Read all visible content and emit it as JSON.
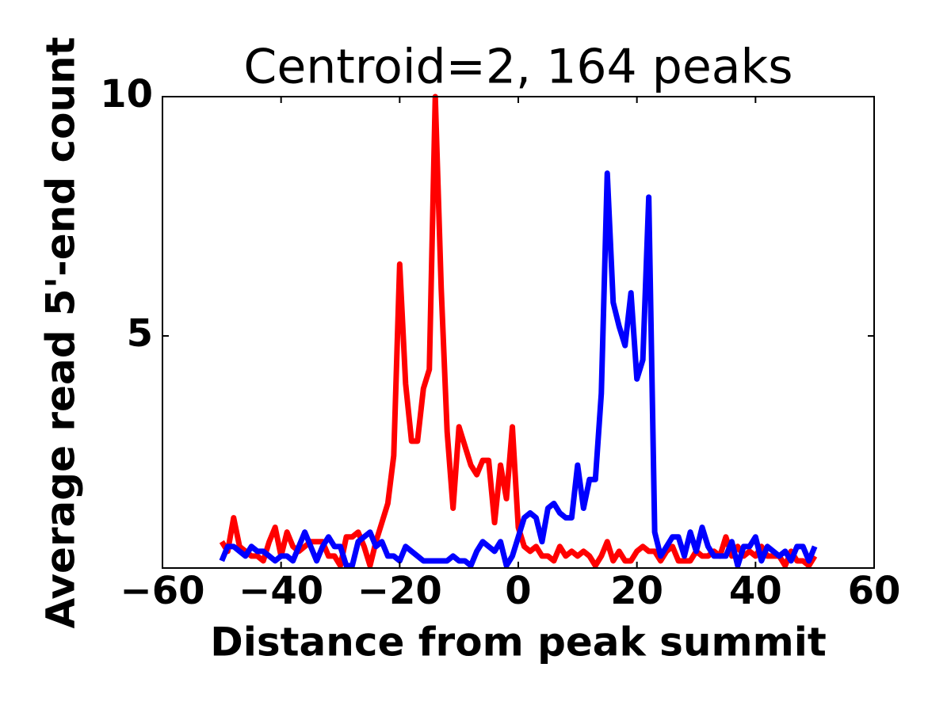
{
  "chart_data": {
    "type": "line",
    "title": "Centroid=2, 164 peaks",
    "x_label": "Distance from peak summit",
    "y_label": "Average read 5'-end count",
    "x": [
      -50,
      -49,
      -48,
      -47,
      -46,
      -45,
      -44,
      -43,
      -42,
      -41,
      -40,
      -39,
      -38,
      -37,
      -36,
      -35,
      -34,
      -33,
      -32,
      -31,
      -30,
      -29,
      -28,
      -27,
      -26,
      -25,
      -24,
      -23,
      -22,
      -21,
      -20,
      -19,
      -18,
      -17,
      -16,
      -15,
      -14,
      -13,
      -12,
      -11,
      -10,
      -9,
      -8,
      -7,
      -6,
      -5,
      -4,
      -3,
      -2,
      -1,
      0,
      1,
      2,
      3,
      4,
      5,
      6,
      7,
      8,
      9,
      10,
      11,
      12,
      13,
      14,
      15,
      16,
      17,
      18,
      19,
      20,
      21,
      22,
      23,
      24,
      25,
      26,
      27,
      28,
      29,
      30,
      31,
      32,
      33,
      34,
      35,
      36,
      37,
      38,
      39,
      40,
      41,
      42,
      43,
      44,
      45,
      46,
      47,
      48,
      49,
      50
    ],
    "series": [
      {
        "color": "#ff0000",
        "values": [
          0.7,
          0.5,
          1.2,
          0.6,
          0.5,
          0.4,
          0.4,
          0.3,
          0.7,
          1.0,
          0.4,
          0.9,
          0.6,
          0.5,
          0.6,
          0.7,
          0.7,
          0.7,
          0.4,
          0.4,
          0.2,
          0.8,
          0.8,
          0.9,
          0.6,
          0.2,
          0.7,
          1.1,
          1.5,
          2.5,
          6.5,
          4.0,
          2.8,
          2.8,
          3.9,
          4.3,
          10.0,
          6.0,
          3.0,
          1.4,
          3.1,
          2.7,
          2.3,
          2.1,
          2.4,
          2.4,
          1.1,
          2.3,
          1.6,
          3.1,
          1.0,
          0.6,
          0.5,
          0.6,
          0.4,
          0.4,
          0.3,
          0.6,
          0.4,
          0.5,
          0.4,
          0.5,
          0.4,
          0.2,
          0.4,
          0.7,
          0.3,
          0.5,
          0.3,
          0.3,
          0.5,
          0.6,
          0.5,
          0.5,
          0.3,
          0.5,
          0.6,
          0.3,
          0.3,
          0.3,
          0.5,
          0.4,
          0.4,
          0.5,
          0.4,
          0.8,
          0.4,
          0.6,
          0.4,
          0.5,
          0.4,
          0.6,
          0.4,
          0.4,
          0.4,
          0.2,
          0.5,
          0.3,
          0.3,
          0.2,
          0.4
        ]
      },
      {
        "color": "#0000ff",
        "values": [
          0.3,
          0.6,
          0.6,
          0.5,
          0.4,
          0.6,
          0.5,
          0.5,
          0.4,
          0.3,
          0.4,
          0.4,
          0.3,
          0.6,
          0.9,
          0.6,
          0.3,
          0.6,
          0.8,
          0.6,
          0.6,
          0.2,
          0.2,
          0.7,
          0.8,
          0.9,
          0.6,
          0.7,
          0.4,
          0.4,
          0.3,
          0.6,
          0.5,
          0.4,
          0.3,
          0.3,
          0.3,
          0.3,
          0.3,
          0.4,
          0.3,
          0.3,
          0.2,
          0.5,
          0.7,
          0.6,
          0.5,
          0.7,
          0.2,
          0.4,
          0.8,
          1.2,
          1.3,
          1.2,
          0.7,
          1.4,
          1.5,
          1.3,
          1.2,
          1.2,
          2.3,
          1.4,
          2.0,
          2.0,
          3.8,
          8.4,
          5.7,
          5.2,
          4.8,
          5.9,
          4.1,
          4.5,
          7.9,
          0.9,
          0.4,
          0.6,
          0.8,
          0.8,
          0.4,
          0.9,
          0.5,
          1.0,
          0.6,
          0.4,
          0.4,
          0.4,
          0.7,
          0.2,
          0.6,
          0.6,
          0.8,
          0.3,
          0.6,
          0.5,
          0.4,
          0.5,
          0.3,
          0.6,
          0.6,
          0.3,
          0.6
        ]
      }
    ],
    "xlim": [
      -60,
      60
    ],
    "ylim": [
      0.15,
      10
    ],
    "xticks": [
      {
        "value": -60,
        "label": "−60"
      },
      {
        "value": -40,
        "label": "−40"
      },
      {
        "value": -20,
        "label": "−20"
      },
      0,
      20,
      40,
      60
    ],
    "yticks": [
      5,
      10
    ]
  }
}
